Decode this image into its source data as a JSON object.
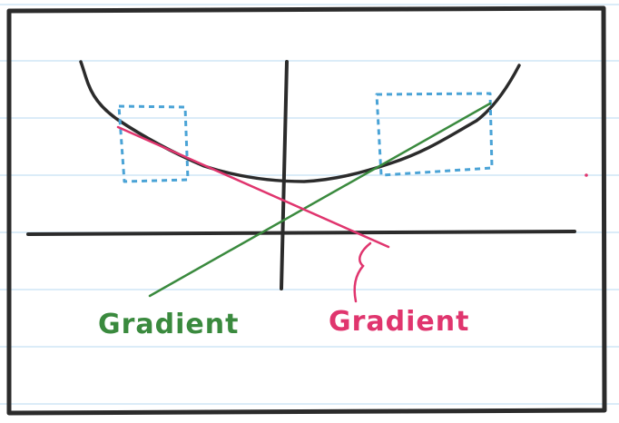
{
  "labels": {
    "green_gradient": "Gradient",
    "pink_gradient": "Gradient"
  },
  "colors": {
    "paper": "#ffffff",
    "ruled_line": "#cfe6f6",
    "frame": "#2b2b2b",
    "axes": "#2b2b2b",
    "curve": "#2b2b2b",
    "box": "#4aa3d6",
    "green": "#3a8a3e",
    "pink": "#e0356e"
  }
}
